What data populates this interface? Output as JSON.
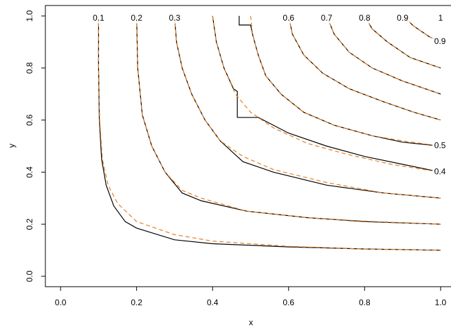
{
  "chart_data": {
    "type": "contour",
    "xlabel": "x",
    "ylabel": "y",
    "xlim": [
      -0.04,
      1.04
    ],
    "ylim": [
      -0.04,
      1.04
    ],
    "xticks": [
      {
        "value": 0,
        "label": "0.0"
      },
      {
        "value": 0.2,
        "label": "0.2"
      },
      {
        "value": 0.4,
        "label": "0.4"
      },
      {
        "value": 0.6,
        "label": "0.6"
      },
      {
        "value": 0.8,
        "label": "0.8"
      },
      {
        "value": 1,
        "label": "1.0"
      }
    ],
    "yticks": [
      {
        "value": 0,
        "label": "0.0"
      },
      {
        "value": 0.2,
        "label": "0.2"
      },
      {
        "value": 0.4,
        "label": "0.4"
      },
      {
        "value": 0.6,
        "label": "0.6"
      },
      {
        "value": 0.8,
        "label": "0.8"
      },
      {
        "value": 1,
        "label": "1.0"
      }
    ],
    "levels": [
      {
        "value": 0.1,
        "label": "0.1"
      },
      {
        "value": 0.2,
        "label": "0.2"
      },
      {
        "value": 0.3,
        "label": "0.3"
      },
      {
        "value": 0.6,
        "label": "0.6"
      },
      {
        "value": 0.7,
        "label": "0.7"
      },
      {
        "value": 0.8,
        "label": "0.8"
      },
      {
        "value": 0.9,
        "label": "0.9"
      },
      1
    ],
    "end_labels": [
      {
        "value": 0.9,
        "label": "0.9"
      },
      {
        "value": 0.5,
        "label": "0.5"
      },
      {
        "value": 0.4,
        "label": "0.4"
      }
    ],
    "series": [
      {
        "color": "#000000",
        "dashed": false,
        "x": [
          0.1,
          0.1,
          0.102,
          0.108,
          0.12,
          0.14,
          0.17,
          0.2,
          0.3,
          0.4,
          0.6,
          0.8,
          1
        ],
        "values": [
          1,
          0.8,
          0.6,
          0.45,
          0.35,
          0.27,
          0.21,
          0.185,
          0.14,
          0.125,
          0.113,
          0.105,
          0.1
        ]
      },
      {
        "color": "#000000",
        "dashed": false,
        "x": [
          0.2,
          0.203,
          0.215,
          0.24,
          0.275,
          0.32,
          0.37,
          0.49,
          0.65,
          0.8,
          1
        ],
        "values": [
          1,
          0.8,
          0.62,
          0.5,
          0.4,
          0.32,
          0.29,
          0.25,
          0.225,
          0.21,
          0.2
        ]
      },
      {
        "color": "#000000",
        "dashed": false,
        "x": [
          0.3,
          0.305,
          0.32,
          0.345,
          0.38,
          0.42,
          0.48,
          0.56,
          0.7,
          0.85,
          1
        ],
        "values": [
          1,
          0.9,
          0.8,
          0.7,
          0.6,
          0.52,
          0.44,
          0.4,
          0.35,
          0.32,
          0.3
        ]
      },
      {
        "color": "#000000",
        "dashed": false,
        "x": [
          0.4,
          0.41,
          0.43,
          0.455,
          0.465,
          0.465,
          0.52,
          0.6,
          0.7,
          0.8,
          0.9,
          1
        ],
        "values": [
          1,
          0.9,
          0.8,
          0.72,
          0.71,
          0.61,
          0.61,
          0.55,
          0.5,
          0.46,
          0.43,
          0.4
        ]
      },
      {
        "color": "#000000",
        "dashed": false,
        "x": [
          0.47,
          0.47,
          0.5,
          0.505,
          0.52,
          0.54,
          0.58,
          0.64,
          0.72,
          0.82,
          0.9,
          1
        ],
        "values": [
          1,
          0.965,
          0.965,
          0.93,
          0.85,
          0.77,
          0.7,
          0.63,
          0.58,
          0.54,
          0.515,
          0.5
        ]
      },
      {
        "color": "#000000",
        "dashed": false,
        "x": [
          0.6,
          0.61,
          0.64,
          0.69,
          0.76,
          0.85,
          0.93,
          1
        ],
        "values": [
          1,
          0.93,
          0.85,
          0.78,
          0.72,
          0.67,
          0.63,
          0.6
        ]
      },
      {
        "color": "#000000",
        "dashed": false,
        "x": [
          0.7,
          0.72,
          0.76,
          0.82,
          0.9,
          1
        ],
        "values": [
          1,
          0.93,
          0.86,
          0.8,
          0.75,
          0.7
        ]
      },
      {
        "color": "#000000",
        "dashed": false,
        "x": [
          0.8,
          0.82,
          0.86,
          0.92,
          1
        ],
        "values": [
          1,
          0.95,
          0.9,
          0.84,
          0.8
        ]
      },
      {
        "color": "#000000",
        "dashed": false,
        "x": [
          0.9,
          0.93,
          0.97,
          1
        ],
        "values": [
          1,
          0.96,
          0.92,
          0.9
        ]
      },
      {
        "color": "#e87d1e",
        "dashed": true,
        "x": [
          0.1,
          0.1,
          0.103,
          0.11,
          0.125,
          0.15,
          0.2,
          0.3,
          0.4,
          0.6,
          0.8,
          1
        ],
        "values": [
          1,
          0.8,
          0.6,
          0.45,
          0.35,
          0.28,
          0.21,
          0.16,
          0.135,
          0.115,
          0.105,
          0.1
        ]
      },
      {
        "color": "#e87d1e",
        "dashed": true,
        "x": [
          0.2,
          0.203,
          0.215,
          0.24,
          0.275,
          0.32,
          0.37,
          0.49,
          0.65,
          0.8,
          1
        ],
        "values": [
          1,
          0.8,
          0.62,
          0.5,
          0.4,
          0.33,
          0.3,
          0.25,
          0.225,
          0.212,
          0.2
        ]
      },
      {
        "color": "#e87d1e",
        "dashed": true,
        "x": [
          0.3,
          0.305,
          0.32,
          0.345,
          0.38,
          0.42,
          0.48,
          0.56,
          0.7,
          0.85,
          1
        ],
        "values": [
          1,
          0.9,
          0.8,
          0.7,
          0.6,
          0.52,
          0.46,
          0.41,
          0.36,
          0.32,
          0.3
        ]
      },
      {
        "color": "#e87d1e",
        "dashed": true,
        "x": [
          0.4,
          0.41,
          0.43,
          0.46,
          0.5,
          0.56,
          0.65,
          0.75,
          0.87,
          1
        ],
        "values": [
          1,
          0.9,
          0.8,
          0.7,
          0.63,
          0.57,
          0.51,
          0.47,
          0.43,
          0.4
        ]
      },
      {
        "color": "#e87d1e",
        "dashed": true,
        "x": [
          0.5,
          0.505,
          0.52,
          0.54,
          0.58,
          0.64,
          0.72,
          0.82,
          0.9,
          1
        ],
        "values": [
          1,
          0.93,
          0.85,
          0.77,
          0.7,
          0.63,
          0.58,
          0.54,
          0.52,
          0.5
        ]
      },
      {
        "color": "#e87d1e",
        "dashed": true,
        "x": [
          0.6,
          0.61,
          0.64,
          0.69,
          0.76,
          0.85,
          0.93,
          1
        ],
        "values": [
          1,
          0.93,
          0.85,
          0.78,
          0.72,
          0.67,
          0.63,
          0.6
        ]
      },
      {
        "color": "#e87d1e",
        "dashed": true,
        "x": [
          0.7,
          0.72,
          0.76,
          0.82,
          0.9,
          1
        ],
        "values": [
          1,
          0.93,
          0.86,
          0.8,
          0.75,
          0.7
        ]
      },
      {
        "color": "#e87d1e",
        "dashed": true,
        "x": [
          0.8,
          0.82,
          0.86,
          0.92,
          1
        ],
        "values": [
          1,
          0.95,
          0.9,
          0.84,
          0.8
        ]
      },
      {
        "color": "#e87d1e",
        "dashed": true,
        "x": [
          0.9,
          0.93,
          0.97,
          1
        ],
        "values": [
          1,
          0.96,
          0.92,
          0.9
        ]
      }
    ]
  }
}
